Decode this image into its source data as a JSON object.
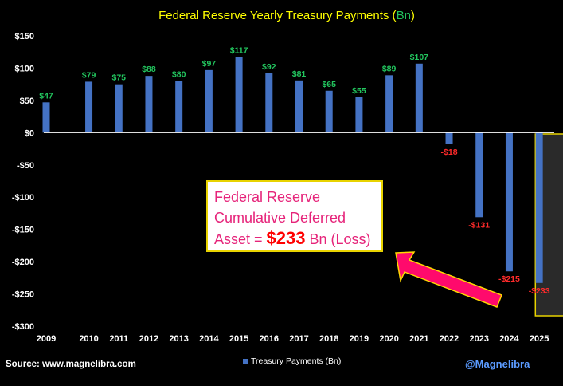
{
  "colors": {
    "background": "#000000",
    "bar": "#4472c4",
    "positive_label": "#22c55e",
    "negative_label": "#ff2a2a",
    "title": "#ffff00",
    "title_unit": "#22c55e",
    "highlight_fill": "#2a2a2a",
    "highlight_border": "#e8d300",
    "arrow_fill": "#ff0a6c",
    "arrow_border": "#ffd700",
    "annotation_text": "#e6247a",
    "annotation_amount": "#ff0000",
    "handle": "#5b9bff"
  },
  "chart_data": {
    "type": "bar",
    "title": "Federal Reserve Yearly Treasury Payments",
    "title_unit": "Bn",
    "categories": [
      "2009",
      "2010",
      "2011",
      "2012",
      "2013",
      "2014",
      "2015",
      "2016",
      "2017",
      "2018",
      "2019",
      "2020",
      "2021",
      "2022",
      "2023",
      "2024",
      "2025"
    ],
    "series": [
      {
        "name": "Treasury Payments (Bn)",
        "values": [
          47,
          79,
          75,
          88,
          80,
          97,
          117,
          92,
          81,
          65,
          55,
          89,
          107,
          -18,
          -131,
          -215,
          -233
        ],
        "labels": [
          "$47",
          "$79",
          "$75",
          "$88",
          "$80",
          "$97",
          "$117",
          "$92",
          "$81",
          "$65",
          "$55",
          "$89",
          "$107",
          "-$18",
          "-$131",
          "-$215",
          "-$233"
        ]
      }
    ],
    "ylim": [
      -300,
      150
    ],
    "yticks": [
      150,
      100,
      50,
      0,
      -50,
      -100,
      -150,
      -200,
      -250,
      -300
    ],
    "ytick_labels": [
      "$150",
      "$100",
      "$50",
      "$0",
      "-$50",
      "-$100",
      "-$150",
      "-$200",
      "-$250",
      "-$300"
    ],
    "highlight_category": "2025",
    "legend": "bottom-center"
  },
  "annotation": {
    "line1": "Federal Reserve",
    "line2": "Cumulative Deferred",
    "prefix": "Asset = ",
    "amount": "$233",
    "suffix": " Bn (Loss)"
  },
  "footer": {
    "source": "Source: www.magnelibra.com",
    "legend_label": "Treasury Payments (Bn)",
    "handle": "@Magnelibra"
  }
}
